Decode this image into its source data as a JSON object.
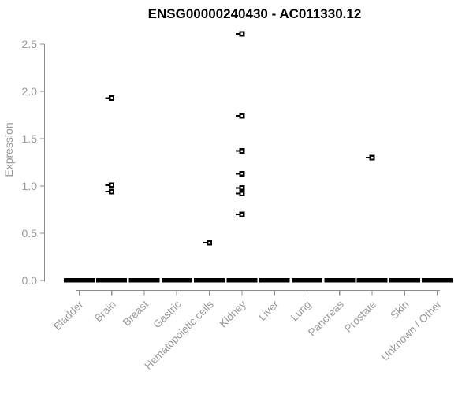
{
  "title": "ENSG00000240430 - AC011330.12",
  "colors": {
    "background": "#ffffff",
    "title_text": "#000000",
    "axis_line": "#8c8c8c",
    "tick_text": "#999999",
    "marker": "#000000",
    "marker_center": "#ffffff",
    "zero_bar": "#000000"
  },
  "chart_data": {
    "type": "scatter",
    "title": "ENSG00000240430 - AC011330.12",
    "xlabel": "",
    "ylabel": "Expression",
    "ylim": [
      0.0,
      2.5
    ],
    "yticks": [
      0.0,
      0.5,
      1.0,
      1.5,
      2.0,
      2.5
    ],
    "ytick_labels": [
      "0.0",
      "0.5",
      "1.0",
      "1.5",
      "2.0",
      "2.5"
    ],
    "grid": false,
    "legend": "none",
    "categories": [
      "Bladder",
      "Brain",
      "Breast",
      "Gastric",
      "Hematopoietic cells",
      "Kidney",
      "Liver",
      "Lung",
      "Pancreas",
      "Prostate",
      "Skin",
      "Unknown / Other"
    ],
    "points": [
      {
        "category": "Brain",
        "values": [
          1.93,
          1.01,
          0.94
        ]
      },
      {
        "category": "Hematopoietic cells",
        "values": [
          0.4
        ]
      },
      {
        "category": "Kidney",
        "values": [
          2.61,
          1.74,
          1.37,
          1.13,
          0.98,
          0.92,
          0.7
        ]
      },
      {
        "category": "Prostate",
        "values": [
          1.3
        ]
      }
    ],
    "zero_bar": {
      "value": 0.0,
      "applies_to": "all_categories",
      "note": "thick black horizontal dash at y=0 under every category"
    },
    "marker_style": "small black open square with short left whisker dash"
  }
}
